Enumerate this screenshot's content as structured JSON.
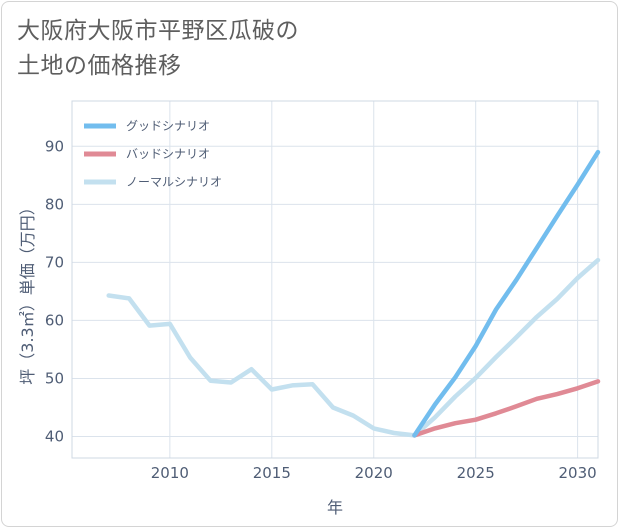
{
  "title": {
    "line1": "大阪府大阪市平野区瓜破の",
    "line2": "土地の価格推移"
  },
  "chart_data": {
    "type": "line",
    "xlabel": "年",
    "ylabel": "坪（3.3㎡）単価（万円）",
    "xlim": [
      2005.2,
      2031
    ],
    "ylim": [
      36.3,
      97.8
    ],
    "xticks": [
      2010,
      2015,
      2020,
      2025,
      2030
    ],
    "yticks": [
      40,
      50,
      60,
      70,
      80,
      90
    ],
    "grid": true,
    "legend_position": "top-left",
    "series": [
      {
        "name": "グッドシナリオ",
        "color": "#72bdee",
        "points": [
          [
            2022,
            40.2
          ],
          [
            2023,
            45.5
          ],
          [
            2024,
            50.2
          ],
          [
            2025,
            55.6
          ],
          [
            2026,
            61.9
          ],
          [
            2027,
            67.0
          ],
          [
            2028,
            72.5
          ],
          [
            2029,
            78.0
          ],
          [
            2030,
            83.4
          ],
          [
            2031,
            89.0
          ]
        ]
      },
      {
        "name": "バッドシナリオ",
        "color": "#e08a95",
        "points": [
          [
            2022,
            40.2
          ],
          [
            2023,
            41.4
          ],
          [
            2024,
            42.3
          ],
          [
            2025,
            42.9
          ],
          [
            2026,
            44.0
          ],
          [
            2027,
            45.2
          ],
          [
            2028,
            46.5
          ],
          [
            2029,
            47.3
          ],
          [
            2030,
            48.3
          ],
          [
            2031,
            49.5
          ]
        ]
      },
      {
        "name": "ノーマルシナリオ",
        "color": "#c3e0ef",
        "points": [
          [
            2007,
            64.3
          ],
          [
            2008,
            63.8
          ],
          [
            2009,
            59.1
          ],
          [
            2010,
            59.4
          ],
          [
            2011,
            53.6
          ],
          [
            2012,
            49.6
          ],
          [
            2013,
            49.3
          ],
          [
            2014,
            51.6
          ],
          [
            2015,
            48.1
          ],
          [
            2016,
            48.8
          ],
          [
            2017,
            49.0
          ],
          [
            2018,
            45.0
          ],
          [
            2019,
            43.6
          ],
          [
            2020,
            41.4
          ],
          [
            2021,
            40.6
          ],
          [
            2022,
            40.2
          ],
          [
            2023,
            43.3
          ],
          [
            2024,
            46.9
          ],
          [
            2025,
            50.1
          ],
          [
            2026,
            53.7
          ],
          [
            2027,
            57.1
          ],
          [
            2028,
            60.6
          ],
          [
            2029,
            63.7
          ],
          [
            2030,
            67.3
          ],
          [
            2031,
            70.4
          ]
        ]
      }
    ]
  }
}
